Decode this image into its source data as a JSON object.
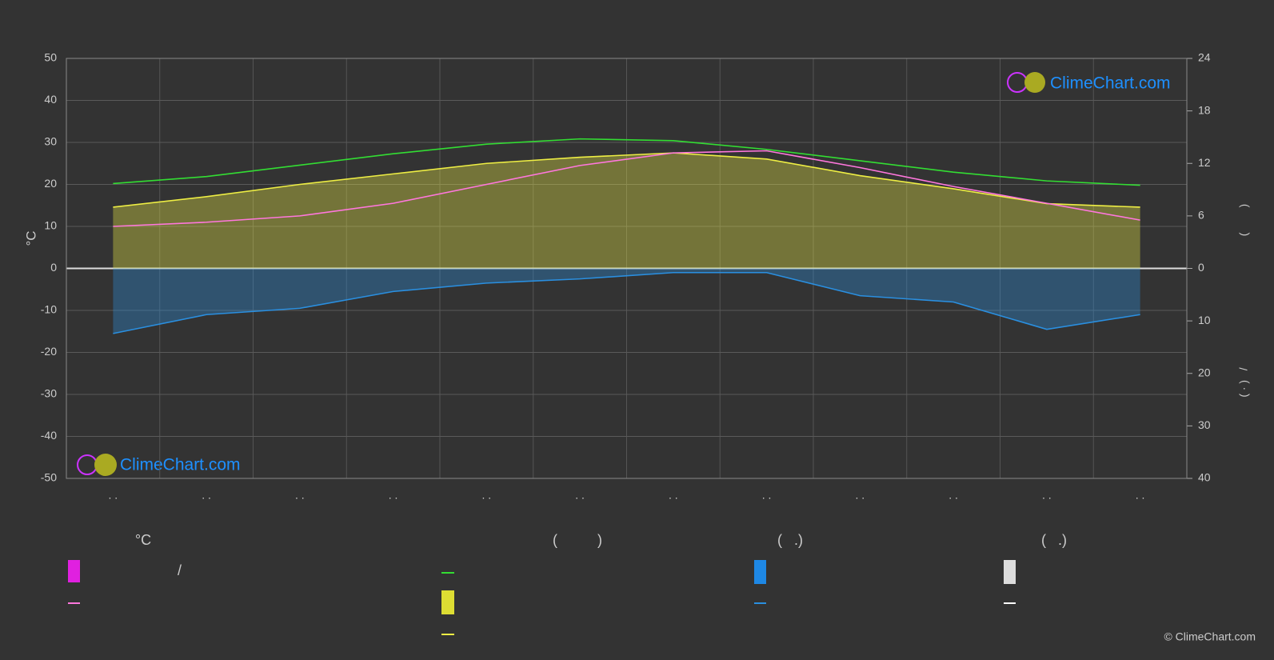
{
  "chart_data": {
    "type": "line",
    "ylabel": "°C",
    "y2label": "(        )",
    "y3label": "( · )   /",
    "categories": [
      ". .",
      ". .",
      ". .",
      ". .",
      ". .",
      ". .",
      ". .",
      ". .",
      ". .",
      ". .",
      ". .",
      ". ."
    ],
    "ylim": [
      -50,
      50
    ],
    "yticks": [
      -50,
      -40,
      -30,
      -20,
      -10,
      0,
      10,
      20,
      30,
      40,
      50
    ],
    "y2lim": [
      0,
      24
    ],
    "y2ticks": [
      0,
      6,
      12,
      18,
      24
    ],
    "y3lim": [
      0,
      40
    ],
    "y3ticks": [
      10,
      20,
      30,
      40
    ],
    "grid": true,
    "series": [
      {
        "color": "#33dd33",
        "axis": "y2",
        "values": [
          9.7,
          10.5,
          11.8,
          13.1,
          14.2,
          14.8,
          14.6,
          13.6,
          12.3,
          11.0,
          10.0,
          9.5
        ]
      },
      {
        "color": "#eeee44",
        "axis": "y2",
        "values": [
          7.0,
          8.2,
          9.6,
          10.8,
          12.0,
          12.7,
          13.2,
          12.5,
          10.6,
          9.1,
          7.4,
          7.0
        ]
      },
      {
        "color": "#ff77dd",
        "axis": "y",
        "values": [
          10,
          11,
          12.5,
          15.5,
          20,
          24.5,
          27.5,
          28,
          24,
          19.5,
          15.5,
          11.5
        ]
      },
      {
        "color": "#2a8fe0",
        "axis": "y3",
        "values": [
          12.4,
          8.8,
          7.6,
          4.4,
          2.8,
          2.0,
          0.8,
          0.8,
          5.2,
          6.4,
          11.6,
          8.8
        ]
      }
    ],
    "legend_headings": [
      "°C",
      "(          )",
      "(   .)",
      "(   .)"
    ],
    "legend_fragment": "/",
    "watermark": "ClimeChart.com",
    "copyright": "© ClimeChart.com"
  }
}
